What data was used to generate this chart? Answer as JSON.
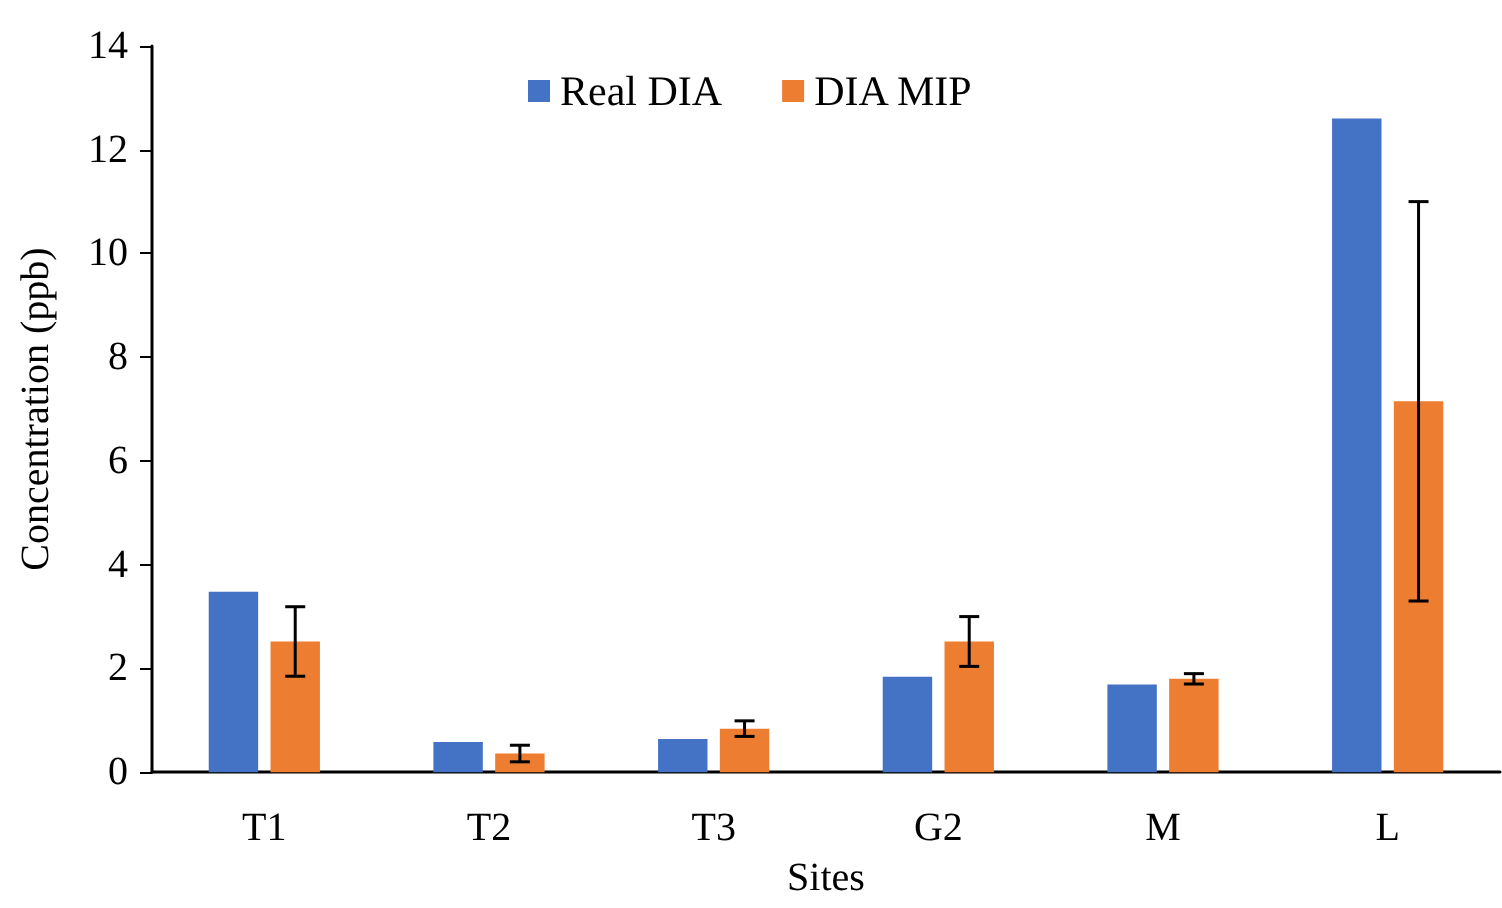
{
  "chart_data": {
    "type": "bar",
    "xlabel": "Sites",
    "ylabel": "Concentration (ppb)",
    "categories": [
      "T1",
      "T2",
      "T3",
      "G2",
      "M",
      "L"
    ],
    "series": [
      {
        "name": "Real DIA",
        "color": "#4472c4",
        "values": [
          3.48,
          0.58,
          0.64,
          1.84,
          1.69,
          12.6
        ]
      },
      {
        "name": "DIA MIP",
        "color": "#ed7d31",
        "values": [
          2.52,
          0.36,
          0.84,
          2.52,
          1.8,
          7.15
        ],
        "errors": [
          0.67,
          0.16,
          0.15,
          0.48,
          0.1,
          3.85
        ]
      }
    ],
    "ylim": [
      0,
      14
    ],
    "yticks": [
      0,
      2,
      4,
      6,
      8,
      10,
      12,
      14
    ],
    "grid": false,
    "legend": "top"
  }
}
